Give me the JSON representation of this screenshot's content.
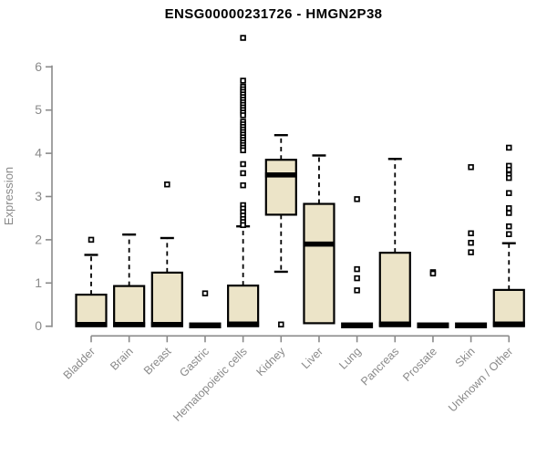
{
  "chart_data": {
    "type": "boxplot",
    "title": "ENSG00000231726 - HMGN2P38",
    "ylabel": "Expression",
    "xlabel": "",
    "ylim": [
      0,
      6.8
    ],
    "yticks": [
      0,
      1,
      2,
      3,
      4,
      5,
      6
    ],
    "grid": false,
    "legend": "none",
    "colors": {
      "box_fill": "#ECE4C8",
      "box_stroke": "#000000",
      "median": "#000000",
      "axis": "#8A8A8A",
      "tick_text": "#8A8A8A",
      "title_text": "#000000",
      "background": "#FFFFFF"
    },
    "categories": [
      "Bladder",
      "Brain",
      "Breast",
      "Gastric",
      "Hematopoietic cells",
      "Kidney",
      "Liver",
      "Lung",
      "Pancreas",
      "Prostate",
      "Skin",
      "Unknown / Other"
    ],
    "boxes": [
      {
        "category": "Bladder",
        "q1": 0,
        "median": 0.04,
        "q3": 0.73,
        "whisker_low": 0,
        "whisker_high": 1.65,
        "outliers": [
          2.0
        ]
      },
      {
        "category": "Brain",
        "q1": 0,
        "median": 0.04,
        "q3": 0.93,
        "whisker_low": 0,
        "whisker_high": 2.12,
        "outliers": []
      },
      {
        "category": "Breast",
        "q1": 0,
        "median": 0.04,
        "q3": 1.24,
        "whisker_low": 0,
        "whisker_high": 2.04,
        "outliers": [
          3.28
        ]
      },
      {
        "category": "Gastric",
        "q1": 0,
        "median": 0.02,
        "q3": 0.04,
        "whisker_low": 0,
        "whisker_high": 0.04,
        "outliers": [
          0.76
        ]
      },
      {
        "category": "Hematopoietic cells",
        "q1": 0,
        "median": 0.05,
        "q3": 0.94,
        "whisker_low": 0,
        "whisker_high": 2.31,
        "outliers": [
          6.67,
          5.68,
          5.54,
          5.48,
          5.42,
          5.36,
          5.3,
          5.24,
          5.18,
          5.12,
          5.06,
          5.0,
          4.94,
          4.88,
          4.73,
          4.67,
          4.61,
          4.55,
          4.49,
          4.43,
          4.37,
          4.31,
          4.25,
          4.19,
          4.13,
          4.07,
          3.75,
          3.54,
          3.26,
          2.8,
          2.72,
          2.64,
          2.56,
          2.48,
          2.41,
          2.34
        ]
      },
      {
        "category": "Kidney",
        "q1": 2.58,
        "median": 3.5,
        "q3": 3.85,
        "whisker_low": 1.26,
        "whisker_high": 4.42,
        "outliers": [
          0.04
        ]
      },
      {
        "category": "Liver",
        "q1": 0.07,
        "median": 1.9,
        "q3": 2.83,
        "whisker_low": 0.07,
        "whisker_high": 3.95,
        "outliers": []
      },
      {
        "category": "Lung",
        "q1": 0,
        "median": 0.02,
        "q3": 0.04,
        "whisker_low": 0,
        "whisker_high": 0.04,
        "outliers": [
          2.94,
          1.32,
          1.11,
          0.83
        ]
      },
      {
        "category": "Pancreas",
        "q1": 0,
        "median": 0.05,
        "q3": 1.7,
        "whisker_low": 0,
        "whisker_high": 3.87,
        "outliers": []
      },
      {
        "category": "Prostate",
        "q1": 0,
        "median": 0.02,
        "q3": 0.04,
        "whisker_low": 0,
        "whisker_high": 0.04,
        "outliers": [
          1.25,
          1.22
        ]
      },
      {
        "category": "Skin",
        "q1": 0,
        "median": 0.02,
        "q3": 0.04,
        "whisker_low": 0,
        "whisker_high": 0.04,
        "outliers": [
          3.68,
          2.15,
          1.93,
          1.71
        ]
      },
      {
        "category": "Unknown / Other",
        "q1": 0,
        "median": 0.05,
        "q3": 0.84,
        "whisker_low": 0,
        "whisker_high": 1.92,
        "outliers": [
          4.13,
          3.71,
          3.62,
          3.5,
          3.43,
          3.08,
          2.73,
          2.62,
          2.31,
          2.13
        ]
      }
    ]
  }
}
